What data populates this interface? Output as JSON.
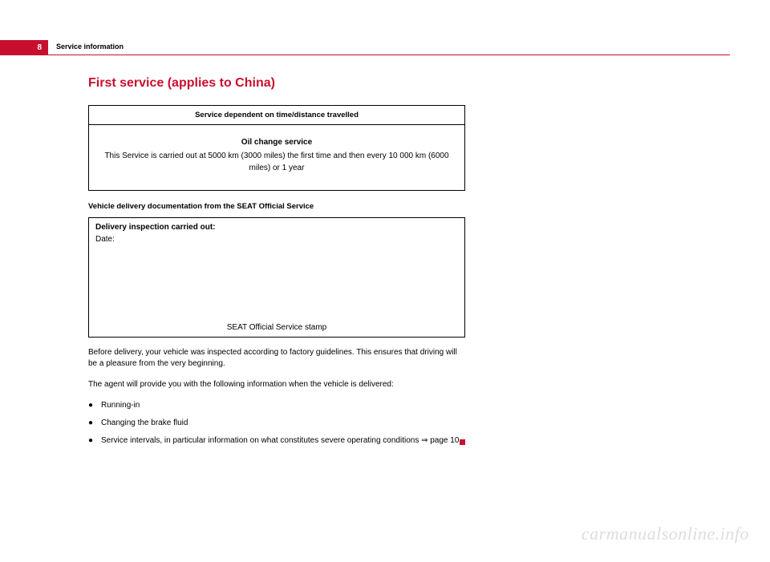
{
  "header": {
    "page_number": "8",
    "section": "Service information",
    "rule_color": "#c8102e",
    "badge_bg": "#c8102e",
    "badge_fg": "#ffffff"
  },
  "heading": {
    "text": "First service (applies to China)",
    "color": "#c8102e"
  },
  "service_table": {
    "header": "Service dependent on time/distance travelled",
    "row_title": "Oil change service",
    "row_body": "This Service is carried out at 5000 km (3000 miles) the first time and then every 10 000 km (6000 miles) or 1 year"
  },
  "delivery": {
    "subhead": "Vehicle delivery documentation from the SEAT Official Service",
    "box_title": "Delivery inspection carried out:",
    "date_label": "Date:",
    "stamp_label": "SEAT Official Service stamp"
  },
  "paragraphs": {
    "p1": "Before delivery, your vehicle was inspected according to factory guidelines. This ensures that driving will be a pleasure from the very beginning.",
    "p2": "The agent will provide you with the following information when the vehicle is delivered:"
  },
  "bullets": [
    "Running-in",
    "Changing the brake fluid",
    "Service intervals, in particular information on what constitutes severe operating conditions ⇒ page 10"
  ],
  "watermark": "carmanualsonline.info"
}
